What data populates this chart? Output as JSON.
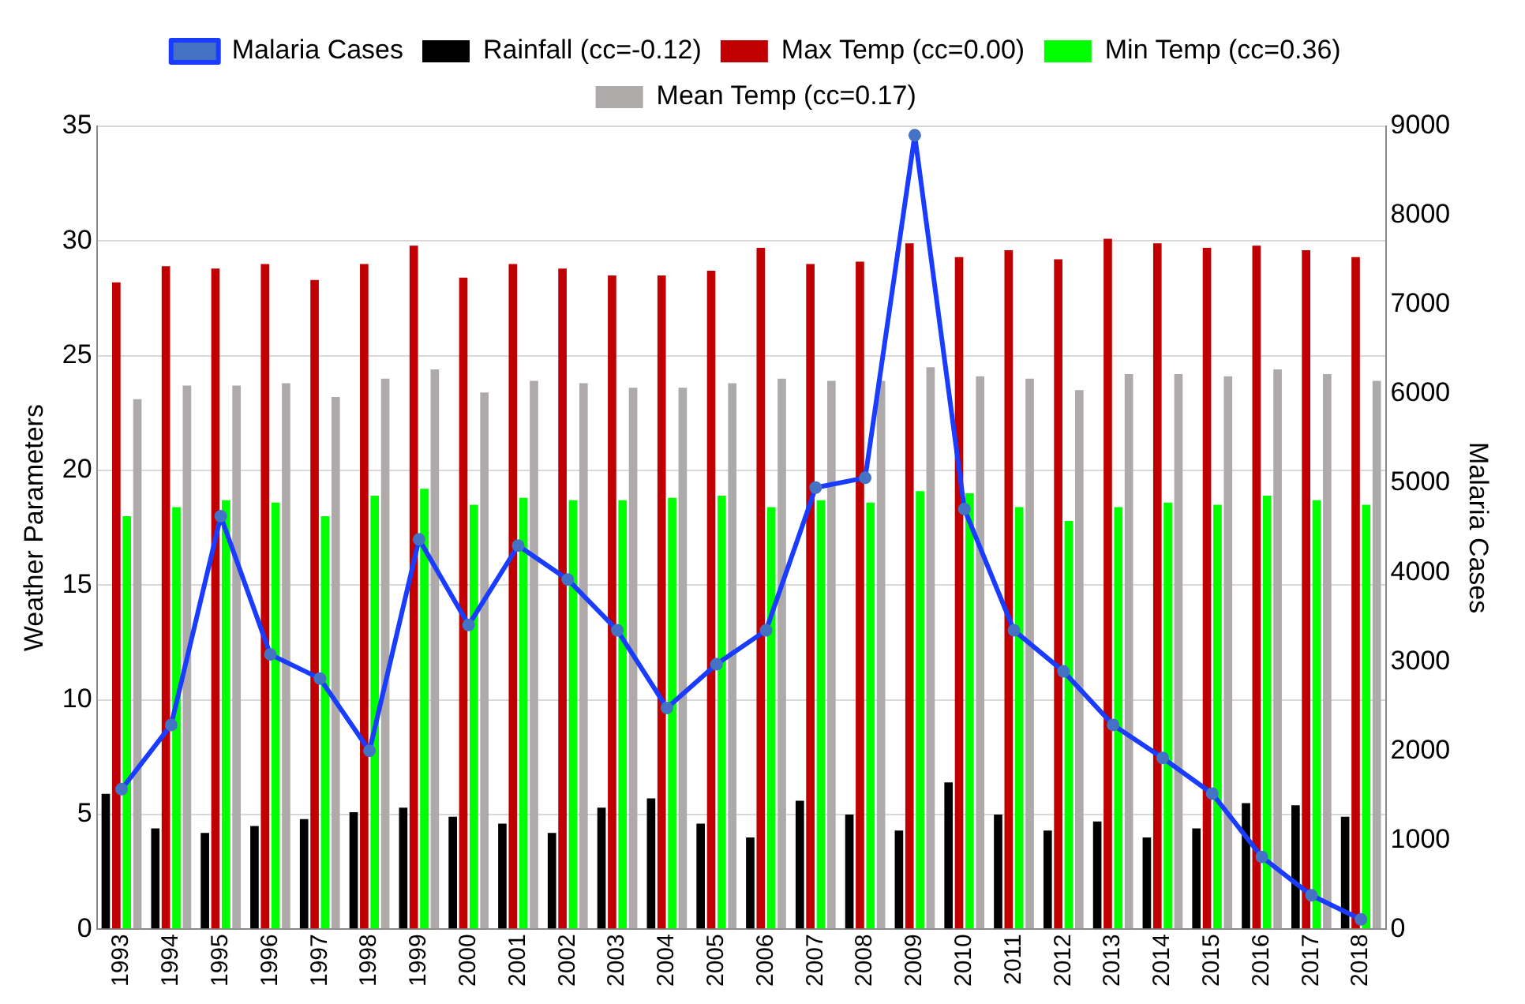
{
  "chart_data": {
    "type": "bar",
    "ylabel": "Weather Parameters",
    "y2label": "Malaria Cases",
    "categories": [
      "1993",
      "1994",
      "1995",
      "1996",
      "1997",
      "1998",
      "1999",
      "2000",
      "2001",
      "2002",
      "2003",
      "2004",
      "2005",
      "2006",
      "2007",
      "2008",
      "2009",
      "2010",
      "2011",
      "2012",
      "2013",
      "2014",
      "2015",
      "2016",
      "2017",
      "2018"
    ],
    "series": [
      {
        "name": "Rainfall (cc=-0.12)",
        "color": "#000000",
        "values": [
          5.9,
          4.4,
          4.2,
          4.5,
          4.8,
          5.1,
          5.3,
          4.9,
          4.6,
          4.2,
          5.3,
          5.7,
          4.6,
          4.0,
          5.6,
          5.0,
          4.3,
          6.4,
          5.0,
          4.3,
          4.7,
          4.0,
          4.4,
          5.5,
          5.4,
          4.9
        ]
      },
      {
        "name": "Max Temp (cc=0.00)",
        "color": "#c00000",
        "values": [
          28.2,
          28.9,
          28.8,
          29.0,
          28.3,
          29.0,
          29.8,
          28.4,
          29.0,
          28.8,
          28.5,
          28.5,
          28.7,
          29.7,
          29.0,
          29.1,
          29.9,
          29.3,
          29.6,
          29.2,
          30.1,
          29.9,
          29.7,
          29.8,
          29.6,
          29.3
        ]
      },
      {
        "name": "Min Temp (cc=0.36)",
        "color": "#00ff00",
        "values": [
          18.0,
          18.4,
          18.7,
          18.6,
          18.0,
          18.9,
          19.2,
          18.5,
          18.8,
          18.7,
          18.7,
          18.8,
          18.9,
          18.4,
          18.7,
          18.6,
          19.1,
          19.0,
          18.4,
          17.8,
          18.4,
          18.6,
          18.5,
          18.9,
          18.7,
          18.5
        ]
      },
      {
        "name": "Mean Temp (cc=0.17)",
        "color": "#aeaaaa",
        "values": [
          23.1,
          23.7,
          23.7,
          23.8,
          23.2,
          24.0,
          24.4,
          23.4,
          23.9,
          23.8,
          23.6,
          23.6,
          23.8,
          24.0,
          23.9,
          23.9,
          24.5,
          24.1,
          24.0,
          23.5,
          24.2,
          24.2,
          24.1,
          24.4,
          24.2,
          23.9
        ]
      },
      {
        "name": "Malaria Cases",
        "type": "line",
        "axis": "y2",
        "color": "#1a3cff",
        "marker": "circle",
        "values": [
          1570,
          2290,
          4630,
          3080,
          2810,
          2000,
          4370,
          3410,
          4300,
          3920,
          3350,
          2480,
          2970,
          3350,
          4950,
          5060,
          8900,
          4710,
          3350,
          2890,
          2290,
          1920,
          1520,
          810,
          380,
          110
        ]
      }
    ],
    "ylim": [
      0,
      35
    ],
    "yticks": [
      0,
      5,
      10,
      15,
      20,
      25,
      30,
      35
    ],
    "y2lim": [
      0,
      9000
    ],
    "y2ticks": [
      0,
      1000,
      2000,
      3000,
      4000,
      5000,
      6000,
      7000,
      8000,
      9000
    ],
    "grid": "y",
    "legend": "top"
  }
}
